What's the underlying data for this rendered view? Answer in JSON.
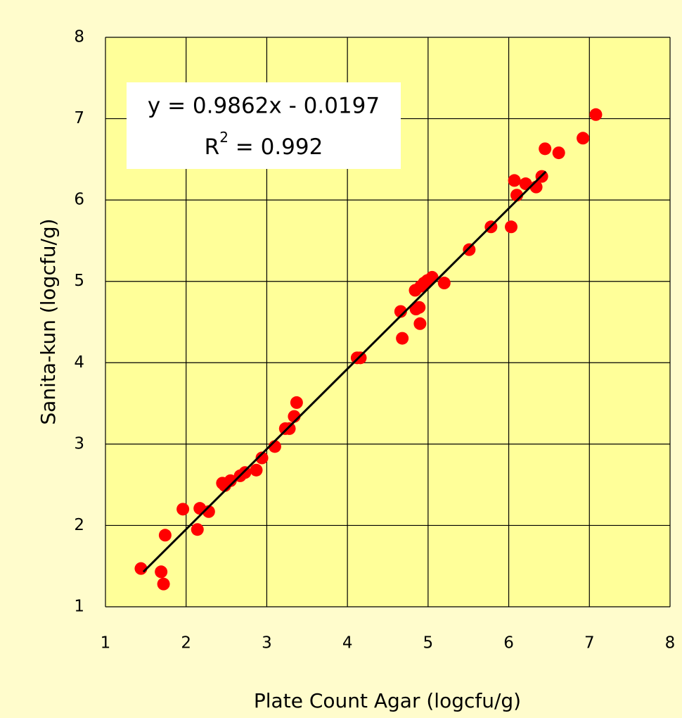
{
  "chart_data": {
    "type": "scatter",
    "xlabel": "Plate Count Agar (logcfu/g)",
    "ylabel": "Sanita-kun (logcfu/g)",
    "annotation": {
      "line1": "y = 0.9862x - 0.0197",
      "line2_base": "R",
      "line2_sup": "2",
      "line2_rest": " = 0.992"
    },
    "xlim": [
      1,
      8
    ],
    "ylim": [
      1,
      8
    ],
    "xticks": [
      1,
      2,
      3,
      4,
      5,
      6,
      7,
      8
    ],
    "yticks": [
      1,
      2,
      3,
      4,
      5,
      6,
      7,
      8
    ],
    "grid": true,
    "series": [
      {
        "color": "#ff0000",
        "x": [
          1.44,
          1.69,
          1.72,
          1.74,
          1.96,
          2.14,
          2.17,
          2.28,
          2.45,
          2.48,
          2.55,
          2.67,
          2.73,
          2.87,
          2.94,
          3.1,
          3.23,
          3.28,
          3.34,
          3.37,
          4.12,
          4.16,
          4.66,
          4.68,
          4.84,
          4.85,
          4.89,
          4.9,
          4.91,
          4.95,
          4.99,
          5.05,
          5.2,
          5.51,
          5.78,
          6.03,
          6.07,
          6.1,
          6.21,
          6.34,
          6.41,
          6.45,
          6.62,
          6.92,
          7.08
        ],
        "values": [
          1.47,
          1.43,
          1.28,
          1.88,
          2.2,
          1.95,
          2.21,
          2.17,
          2.52,
          2.49,
          2.55,
          2.61,
          2.65,
          2.68,
          2.83,
          2.97,
          3.19,
          3.19,
          3.34,
          3.51,
          4.06,
          4.06,
          4.63,
          4.3,
          4.89,
          4.66,
          4.68,
          4.48,
          4.94,
          4.98,
          5.01,
          5.05,
          4.98,
          5.39,
          5.67,
          5.67,
          6.24,
          6.06,
          6.2,
          6.16,
          6.29,
          6.63,
          6.58,
          6.76,
          7.05
        ]
      },
      {
        "type": "line",
        "color": "#000000",
        "x": [
          1.47,
          6.46
        ],
        "values": [
          1.43,
          6.35
        ]
      }
    ]
  }
}
